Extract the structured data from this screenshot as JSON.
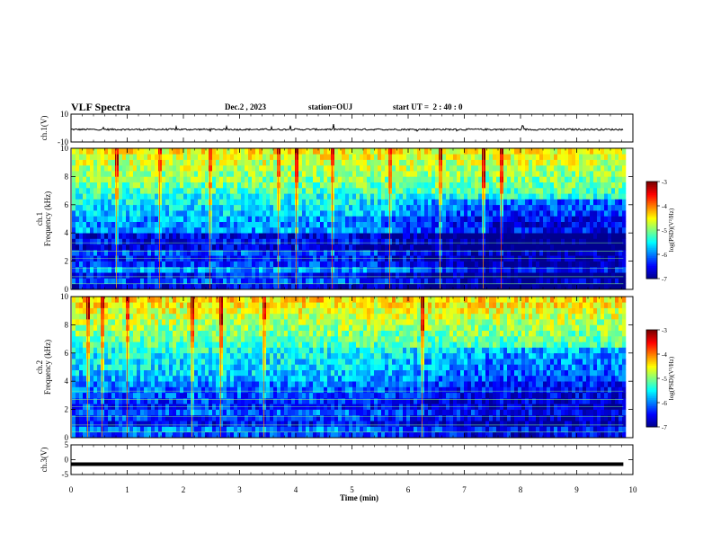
{
  "header": {
    "title": "VLF Spectra",
    "date": "Dec.2 , 2023",
    "station": "station=OUJ",
    "start": "start UT =  2 : 40 : 0"
  },
  "colors": {
    "jet": [
      "#00008f",
      "#0000ff",
      "#0080ff",
      "#00ffff",
      "#80ff80",
      "#ffff00",
      "#ff8000",
      "#ff0000",
      "#800000"
    ],
    "trace": "#000000"
  },
  "chart_data": [
    {
      "type": "line",
      "ylabel": "ch.1(V)",
      "ylim": [
        -10,
        10
      ],
      "yticks": [
        "10",
        "-10"
      ],
      "description_series": "waveform around -1 V with small fluctuations and sparse spikes",
      "baseline": -1,
      "noise_amplitude": 1.2
    },
    {
      "type": "heatmap",
      "panel_label": "ch.1",
      "ylabel": "Frequency (kHz)",
      "ylim": [
        0,
        10
      ],
      "yticks": [
        "0",
        "2",
        "4",
        "6",
        "8",
        "10"
      ],
      "colorbar": {
        "label": "log(PSD)(V²/Hz)",
        "range": [
          -7,
          -3
        ],
        "ticks": [
          "-3",
          "-4",
          "-5",
          "-6",
          "-7"
        ]
      },
      "rows_log_psd": [
        -6.6,
        -6.2,
        -6.5,
        -5.9,
        -6.3,
        -6.4,
        -6.2,
        -6.7,
        -6.5,
        -6.6,
        -5.9,
        -6.0,
        -5.9,
        -5.7,
        -5.6,
        -5.5,
        -5.4,
        -5.2,
        -5.1,
        -5.0,
        -4.9,
        -4.8,
        -4.7,
        -4.6,
        -4.5
      ],
      "late_row_offset": -0.6
    },
    {
      "type": "heatmap",
      "panel_label": "ch.2",
      "ylabel": "Frequency (kHz)",
      "ylim": [
        0,
        10
      ],
      "yticks": [
        "0",
        "2",
        "4",
        "6",
        "8",
        "10"
      ],
      "colorbar": {
        "label": "log(PSD)(V²/Hz)",
        "range": [
          -7,
          -3
        ],
        "ticks": [
          "-3",
          "-4",
          "-5",
          "-6",
          "-7"
        ]
      },
      "rows_log_psd": [
        -6.2,
        -6.0,
        -6.5,
        -6.3,
        -6.1,
        -6.4,
        -6.3,
        -6.2,
        -6.1,
        -6.0,
        -5.8,
        -5.7,
        -5.6,
        -5.6,
        -5.5,
        -5.4,
        -5.2,
        -5.1,
        -5.0,
        -4.9,
        -4.8,
        -4.7,
        -4.6,
        -4.5,
        -4.4
      ],
      "late_row_offset": -0.4
    },
    {
      "type": "line",
      "ylabel": "ch.3(V)",
      "ylim": [
        -5,
        5
      ],
      "yticks": [
        "5",
        "0",
        "-5"
      ],
      "constant_value": -1.5
    }
  ],
  "xaxis": {
    "label": "Time (min)",
    "range": [
      0,
      10
    ],
    "ticks": [
      "0",
      "1",
      "2",
      "3",
      "4",
      "5",
      "6",
      "7",
      "8",
      "9",
      "10"
    ],
    "data_end": 9.83
  }
}
